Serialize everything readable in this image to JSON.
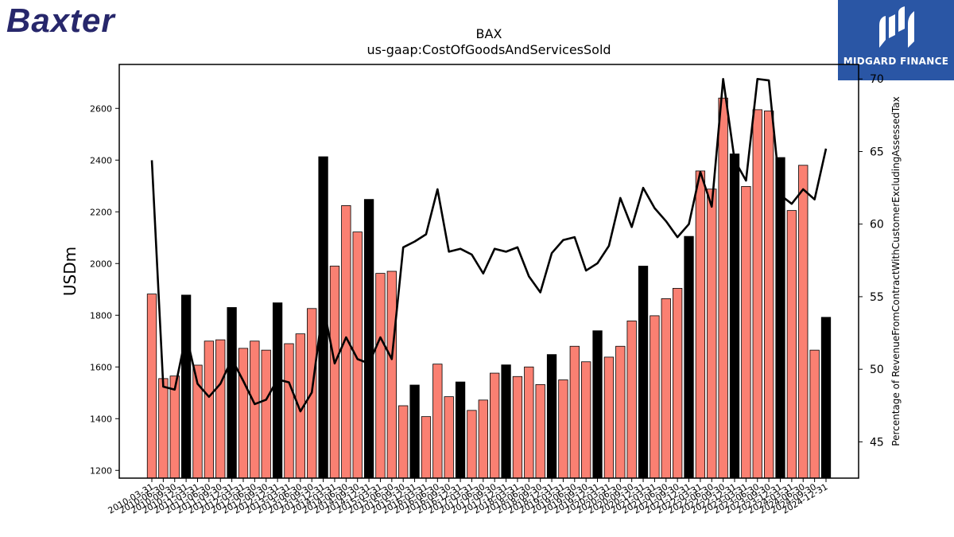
{
  "logos": {
    "left_text": "Baxter",
    "right_text": "MIDGARD FINANCE"
  },
  "colors": {
    "bar_regular": "#fa8072",
    "bar_highlight": "#000000",
    "line": "#000000",
    "logo_right_bg": "#2a56a5",
    "logo_left_text": "#27276b"
  },
  "chart_data": {
    "type": "bar",
    "title": "BAX",
    "subtitle": "us-gaap:CostOfGoodsAndServicesSold",
    "ylabel": "USDm",
    "y2label": "Percentage of RevenueFromContractWithCustomerExcludingAssessedTax",
    "ylim": [
      1170,
      2770
    ],
    "y2lim": [
      42.5,
      71.0
    ],
    "yticks": [
      1200,
      1400,
      1600,
      1800,
      2000,
      2200,
      2400,
      2600
    ],
    "y2ticks": [
      45,
      50,
      55,
      60,
      65,
      70
    ],
    "grid": false,
    "categories": [
      "2010-03-31",
      "2010-06-30",
      "2010-09-30",
      "2010-12-31",
      "2011-03-31",
      "2011-06-30",
      "2011-09-30",
      "2011-12-31",
      "2012-03-31",
      "2012-06-30",
      "2012-09-30",
      "2012-12-31",
      "2013-03-31",
      "2013-06-30",
      "2013-09-30",
      "2013-12-31",
      "2014-03-31",
      "2014-06-30",
      "2014-09-30",
      "2014-12-31",
      "2015-03-31",
      "2015-06-30",
      "2015-09-30",
      "2015-12-31",
      "2016-03-31",
      "2016-06-30",
      "2016-09-30",
      "2016-12-31",
      "2017-03-31",
      "2017-06-30",
      "2017-09-30",
      "2017-12-31",
      "2018-03-31",
      "2018-06-30",
      "2018-09-30",
      "2018-12-31",
      "2019-03-31",
      "2019-06-30",
      "2019-09-30",
      "2019-12-31",
      "2020-03-31",
      "2020-06-30",
      "2020-09-30",
      "2020-12-31",
      "2021-03-31",
      "2021-06-30",
      "2021-09-30",
      "2021-12-31",
      "2022-03-31",
      "2022-06-30",
      "2022-09-30",
      "2022-12-31",
      "2023-03-31",
      "2023-06-30",
      "2023-09-30",
      "2023-12-31",
      "2024-03-31",
      "2024-06-30",
      "2024-09-30",
      "2024-12-31"
    ],
    "series": [
      {
        "type": "bar",
        "axis": "left",
        "values": [
          1882,
          1555,
          1565,
          1878,
          1607,
          1700,
          1705,
          1830,
          1672,
          1700,
          1665,
          1848,
          1690,
          1728,
          1826,
          2413,
          1990,
          2224,
          2122,
          2248,
          1962,
          1970,
          1450,
          1530,
          1408,
          1611,
          1485,
          1542,
          1432,
          1472,
          1576,
          1608,
          1563,
          1600,
          1532,
          1648,
          1550,
          1680,
          1620,
          1740,
          1638,
          1680,
          1778,
          1990,
          1798,
          1864,
          1904,
          2105,
          2358,
          2288,
          2640,
          2424,
          2298,
          2595,
          2590,
          2410,
          2205,
          2380,
          1665,
          1792
        ],
        "highlight": [
          false,
          false,
          false,
          true,
          false,
          false,
          false,
          true,
          false,
          false,
          false,
          true,
          false,
          false,
          false,
          true,
          false,
          false,
          false,
          true,
          false,
          false,
          false,
          true,
          false,
          false,
          false,
          true,
          false,
          false,
          false,
          true,
          false,
          false,
          false,
          true,
          false,
          false,
          false,
          true,
          false,
          false,
          false,
          true,
          false,
          false,
          false,
          true,
          false,
          false,
          false,
          true,
          false,
          false,
          false,
          true,
          false,
          false,
          false,
          true
        ]
      },
      {
        "type": "line",
        "axis": "right",
        "values": [
          64.4,
          48.8,
          48.6,
          52.4,
          49.0,
          48.1,
          49.0,
          50.7,
          49.2,
          47.6,
          47.9,
          49.3,
          49.1,
          47.1,
          48.4,
          54.4,
          50.4,
          52.2,
          50.7,
          50.4,
          52.2,
          50.7,
          58.4,
          58.8,
          59.3,
          62.4,
          58.1,
          58.3,
          57.9,
          56.6,
          58.3,
          58.1,
          58.4,
          56.4,
          55.3,
          58.0,
          58.9,
          59.1,
          56.8,
          57.3,
          58.5,
          61.8,
          59.8,
          62.5,
          61.1,
          60.2,
          59.1,
          60.0,
          63.6,
          61.2,
          70.0,
          64.4,
          63.0,
          70.0,
          69.9,
          62.0,
          61.4,
          62.4,
          61.7,
          65.2
        ]
      }
    ]
  }
}
